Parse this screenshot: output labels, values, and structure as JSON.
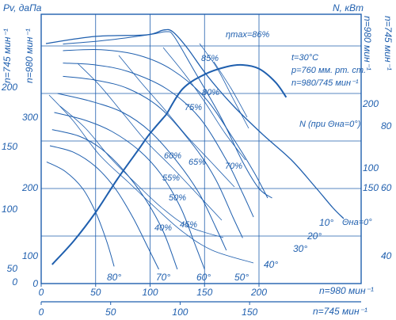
{
  "colors": {
    "ink": "#1f5fae",
    "grid": "#1f5fae",
    "background": "#ffffff"
  },
  "headers": {
    "left_axis": "Pv, даПа",
    "right_axis": "N, кВт",
    "left_speed_980": "n=980 мин⁻¹",
    "left_speed_745": "n=745 мин⁻¹",
    "right_speed_980": "n=980 мин⁻¹",
    "right_speed_745": "n=745 мин⁻¹",
    "bottom_980": "n=980 мин⁻¹",
    "bottom_745": "n=745 мин⁻¹"
  },
  "conditions": {
    "line1": "t=30°C",
    "line2": "p=760 мм. рт. ст.",
    "line3": "n=980/745 мин⁻¹"
  },
  "eta_max": "ηmax=86%",
  "power_label": "N (при Θна=0°)",
  "theta_label": "Θна=0°",
  "chart_data": {
    "type": "line",
    "x_axes": [
      {
        "speed": "n=980 мин⁻¹",
        "ticks": [
          "0",
          "50",
          "100",
          "150",
          "200"
        ],
        "range": [
          0,
          235
        ]
      },
      {
        "speed": "n=745 мин⁻¹",
        "ticks": [
          "0",
          "50",
          "100",
          "150"
        ],
        "range": [
          0,
          178
        ]
      }
    ],
    "y_axes_left": [
      {
        "speed": "n=980 мин⁻¹",
        "ticks": [
          "0",
          "100",
          "200",
          "300"
        ]
      },
      {
        "speed": "n=745 мин⁻¹",
        "ticks": [
          "0",
          "50",
          "100",
          "150",
          "200"
        ]
      }
    ],
    "y_axes_right": [
      {
        "speed": "n=980 мин⁻¹",
        "ticks": [
          "100",
          "150",
          "200"
        ]
      },
      {
        "speed": "n=745 мин⁻¹",
        "ticks": [
          "40",
          "60",
          "80"
        ]
      }
    ],
    "grid": true,
    "efficiency_labels": [
      "85%",
      "80%",
      "75%",
      "70%",
      "65%",
      "60%",
      "55%",
      "50%",
      "45%",
      "40%"
    ],
    "vane_angle_labels": [
      "10°",
      "20°",
      "30°",
      "40°",
      "50°",
      "60°",
      "70°",
      "80°"
    ],
    "series": [
      {
        "angle": 0,
        "points": [
          [
            20,
            252
          ],
          [
            60,
            256
          ],
          [
            100,
            262
          ],
          [
            115,
            265
          ],
          [
            122,
            260
          ],
          [
            140,
            225
          ],
          [
            165,
            175
          ],
          [
            185,
            128
          ],
          [
            200,
            100
          ],
          [
            212,
            90
          ]
        ]
      },
      {
        "angle": 10,
        "points": [
          [
            20,
            245
          ],
          [
            55,
            246
          ],
          [
            90,
            240
          ],
          [
            120,
            225
          ],
          [
            150,
            196
          ],
          [
            175,
            155
          ],
          [
            195,
            118
          ],
          [
            208,
            90
          ]
        ]
      },
      {
        "angle": 20,
        "points": [
          [
            20,
            232
          ],
          [
            50,
            230
          ],
          [
            80,
            223
          ],
          [
            115,
            205
          ],
          [
            145,
            175
          ],
          [
            170,
            130
          ],
          [
            185,
            95
          ],
          [
            195,
            70
          ]
        ]
      },
      {
        "angle": 30,
        "points": [
          [
            20,
            218
          ],
          [
            50,
            214
          ],
          [
            80,
            205
          ],
          [
            110,
            184
          ],
          [
            140,
            145
          ],
          [
            160,
            110
          ],
          [
            176,
            70
          ],
          [
            185,
            48
          ]
        ]
      },
      {
        "angle": 40,
        "points": [
          [
            15,
            200
          ],
          [
            45,
            192
          ],
          [
            75,
            180
          ],
          [
            100,
            160
          ],
          [
            125,
            128
          ],
          [
            145,
            95
          ],
          [
            160,
            60
          ],
          [
            170,
            35
          ]
        ]
      },
      {
        "angle": 50,
        "points": [
          [
            12,
            180
          ],
          [
            40,
            172
          ],
          [
            65,
            160
          ],
          [
            90,
            140
          ],
          [
            110,
            115
          ],
          [
            128,
            80
          ],
          [
            140,
            45
          ],
          [
            150,
            15
          ]
        ]
      },
      {
        "angle": 60,
        "points": [
          [
            10,
            162
          ],
          [
            35,
            155
          ],
          [
            55,
            142
          ],
          [
            75,
            120
          ],
          [
            95,
            90
          ],
          [
            112,
            55
          ],
          [
            125,
            15
          ]
        ]
      },
      {
        "angle": 70,
        "points": [
          [
            8,
            145
          ],
          [
            30,
            138
          ],
          [
            50,
            123
          ],
          [
            68,
            100
          ],
          [
            84,
            70
          ],
          [
            98,
            38
          ],
          [
            108,
            15
          ]
        ]
      },
      {
        "angle": 80,
        "points": [
          [
            5,
            128
          ],
          [
            22,
            118
          ],
          [
            38,
            100
          ],
          [
            50,
            75
          ],
          [
            60,
            45
          ],
          [
            67,
            18
          ]
        ]
      }
    ],
    "system_curve": {
      "points": [
        [
          10,
          20
        ],
        [
          30,
          45
        ],
        [
          50,
          75
        ],
        [
          70,
          110
        ],
        [
          90,
          142
        ],
        [
          100,
          158
        ],
        [
          115,
          178
        ]
      ]
    },
    "power_curve": {
      "points": [
        [
          115,
          178
        ],
        [
          130,
          205
        ],
        [
          150,
          220
        ],
        [
          170,
          228
        ],
        [
          185,
          230
        ],
        [
          200,
          226
        ],
        [
          215,
          212
        ],
        [
          225,
          196
        ]
      ]
    }
  }
}
